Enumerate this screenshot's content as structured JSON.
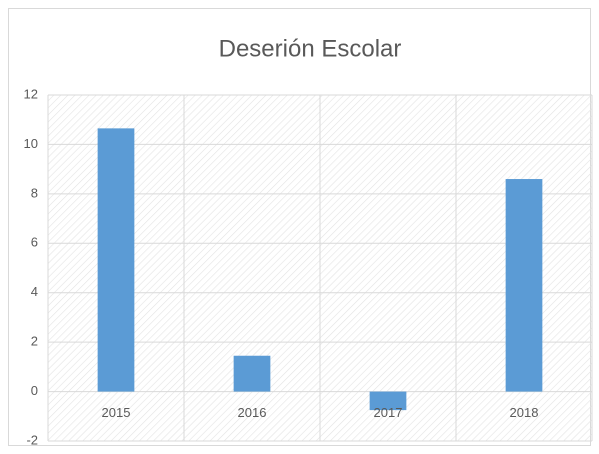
{
  "chart_data": {
    "type": "bar",
    "title": "Deserión Escolar",
    "categories": [
      "2015",
      "2016",
      "2017",
      "2018"
    ],
    "values": [
      10.65,
      1.45,
      -0.75,
      8.6
    ],
    "color": "#5b9bd5",
    "ylim": [
      -2,
      12
    ],
    "yticks": [
      -2,
      0,
      2,
      4,
      6,
      8,
      10,
      12
    ],
    "grid": true
  }
}
